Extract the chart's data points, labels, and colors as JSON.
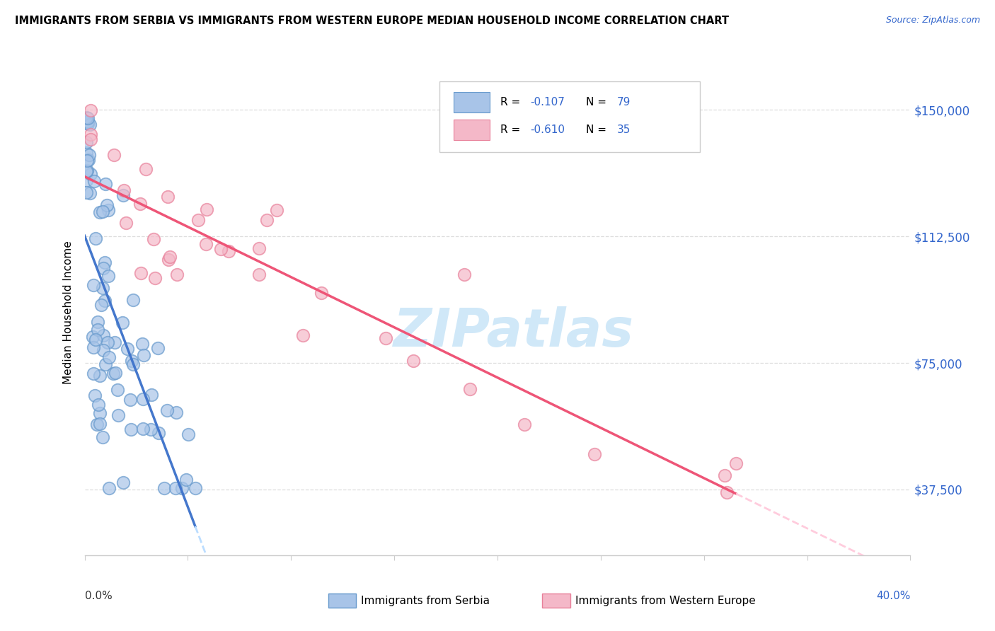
{
  "title": "IMMIGRANTS FROM SERBIA VS IMMIGRANTS FROM WESTERN EUROPE MEDIAN HOUSEHOLD INCOME CORRELATION CHART",
  "source": "Source: ZipAtlas.com",
  "ylabel": "Median Household Income",
  "ytick_vals": [
    37500,
    75000,
    112500,
    150000
  ],
  "ytick_labels": [
    "$37,500",
    "$75,000",
    "$112,500",
    "$150,000"
  ],
  "xmin": 0.0,
  "xmax": 0.4,
  "ymin": 18000,
  "ymax": 162000,
  "watermark": "ZIPatlas",
  "legend_r1": "-0.107",
  "legend_n1": "79",
  "legend_r2": "-0.610",
  "legend_n2": "35",
  "serbia_color": "#a8c4e8",
  "serbia_edge_color": "#6699cc",
  "western_color": "#f4b8c8",
  "western_edge_color": "#e8809a",
  "serbia_line_color": "#4477cc",
  "western_line_color": "#ee5577",
  "serbia_dash_color": "#bbddff",
  "western_dash_color": "#ffccdd",
  "background_color": "#ffffff",
  "grid_color": "#dddddd",
  "right_tick_color": "#3366cc",
  "serbia_seed": 12345,
  "western_seed": 99
}
